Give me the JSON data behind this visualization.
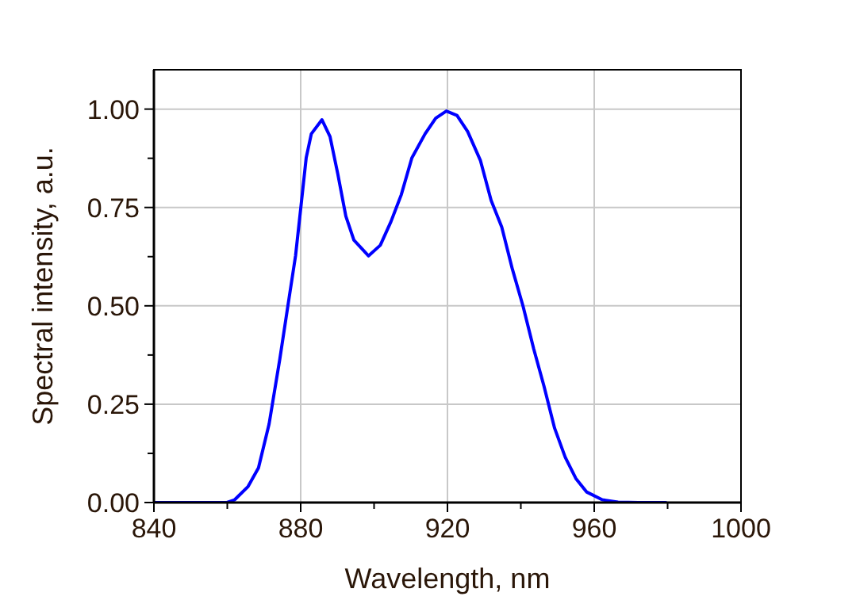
{
  "chart_data": {
    "type": "line",
    "xlabel": "Wavelength, nm",
    "ylabel": "Spectral intensity, a.u.",
    "xlim": [
      840,
      1000
    ],
    "ylim": [
      0,
      1.1
    ],
    "xticks": [
      840,
      {
        "value": 860,
        "label": null
      },
      880,
      {
        "value": 900,
        "label": null
      },
      920,
      {
        "value": 940,
        "label": null
      },
      960,
      {
        "value": 980,
        "label": null
      },
      1000
    ],
    "yticks": [
      {
        "value": 0,
        "label": "0.00"
      },
      {
        "value": 0.125,
        "label": null
      },
      {
        "value": 0.25,
        "label": "0.25"
      },
      {
        "value": 0.375,
        "label": null
      },
      {
        "value": 0.5,
        "label": "0.50"
      },
      {
        "value": 0.625,
        "label": null
      },
      {
        "value": 0.75,
        "label": "0.75"
      },
      {
        "value": 0.875,
        "label": null
      },
      {
        "value": 1,
        "label": "1.00"
      }
    ],
    "grid": true,
    "marker": "none",
    "line_style": "solid",
    "series": [
      {
        "color": "#0000ff",
        "x": [
          840,
          850,
          859.9,
          862,
          865.6,
          868.5,
          871.4,
          874.3,
          876.5,
          878.6,
          880.1,
          881.5,
          882.9,
          885.8,
          888,
          890.1,
          892.3,
          894.5,
          898.5,
          901.7,
          904.6,
          907.4,
          910.3,
          913.9,
          916.8,
          919.7,
          922.6,
          925.5,
          929,
          931.9,
          934.8,
          937.7,
          940.6,
          943.5,
          946.3,
          949.2,
          952.1,
          955,
          957.9,
          962.2,
          966.5,
          972,
          979.5
        ],
        "values": [
          0,
          0,
          0,
          0.007,
          0.04,
          0.088,
          0.2,
          0.364,
          0.499,
          0.627,
          0.755,
          0.876,
          0.937,
          0.973,
          0.93,
          0.836,
          0.728,
          0.667,
          0.627,
          0.654,
          0.714,
          0.782,
          0.876,
          0.937,
          0.977,
          0.995,
          0.984,
          0.943,
          0.869,
          0.768,
          0.7,
          0.593,
          0.499,
          0.391,
          0.296,
          0.189,
          0.115,
          0.061,
          0.027,
          0.007,
          0.001,
          0,
          0
        ]
      }
    ]
  }
}
